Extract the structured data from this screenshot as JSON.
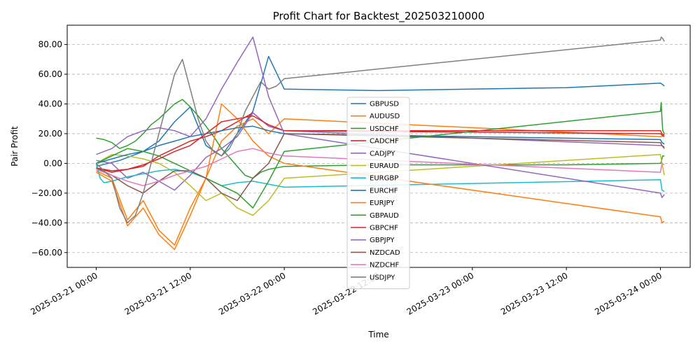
{
  "chart_data": {
    "type": "line",
    "title": "Profit Chart for Backtest_202503210000",
    "xlabel": "Time",
    "ylabel": "Pair Profit",
    "x_tick_labels": [
      "2025-03-21 00:00",
      "2025-03-21 12:00",
      "2025-03-22 00:00",
      "2025-03-22 12:00",
      "2025-03-23 00:00",
      "2025-03-23 12:00",
      "2025-03-24 00:00"
    ],
    "y_tick_labels": [
      "−60.00",
      "−40.00",
      "−20.00",
      "0.00",
      "20.00",
      "40.00",
      "60.00",
      "80.00"
    ],
    "y_ticks": [
      -60,
      -40,
      -20,
      0,
      20,
      40,
      60,
      80
    ],
    "xlim_hours": [
      -3.7,
      75.8
    ],
    "ylim": [
      -70,
      93
    ],
    "grid": "y-dashed",
    "legend_location": "center",
    "series": [
      {
        "name": "GBPUSD",
        "color": "#1f77b4",
        "x": [
          0,
          3,
          6,
          8,
          10,
          12,
          14,
          16,
          18,
          20,
          22,
          24,
          36,
          60,
          72,
          72.3,
          72.5
        ],
        "y": [
          -2,
          2,
          8,
          15,
          28,
          38,
          12,
          5,
          20,
          35,
          72,
          50,
          49,
          51,
          54,
          53,
          52
        ]
      },
      {
        "name": "AUDUSD",
        "color": "#ff7f0e",
        "x": [
          0,
          2,
          4,
          6,
          8,
          10,
          12,
          14,
          16,
          18,
          20,
          22,
          24,
          72,
          72.2,
          72.5
        ],
        "y": [
          -5,
          -10,
          -38,
          -25,
          -45,
          -55,
          -30,
          -10,
          15,
          25,
          30,
          20,
          30,
          18,
          18,
          20
        ]
      },
      {
        "name": "USDCHF",
        "color": "#2ca02c",
        "x": [
          0,
          1,
          2,
          3,
          4,
          5,
          6,
          7,
          8,
          9,
          10,
          11,
          12,
          13,
          14,
          15,
          16,
          17,
          18,
          19,
          20,
          21,
          22,
          23,
          24,
          36,
          60,
          72,
          72.1,
          72.2,
          72.3,
          72.5
        ],
        "y": [
          17,
          16,
          14,
          10,
          12,
          15,
          20,
          26,
          30,
          35,
          40,
          43,
          38,
          32,
          25,
          18,
          10,
          4,
          -2,
          -8,
          -10,
          -6,
          -4,
          -3,
          -2,
          -1,
          -1,
          0,
          1,
          3,
          5,
          5
        ]
      },
      {
        "name": "CADCHF",
        "color": "#d62728",
        "x": [
          0,
          2,
          4,
          6,
          8,
          10,
          12,
          14,
          16,
          18,
          20,
          22,
          24,
          72,
          72.2,
          72.5
        ],
        "y": [
          -3,
          -5,
          -4,
          -2,
          5,
          10,
          15,
          18,
          22,
          28,
          34,
          25,
          22,
          20,
          19,
          18
        ]
      },
      {
        "name": "CADJPY",
        "color": "#9467bd",
        "x": [
          0,
          2,
          4,
          6,
          8,
          10,
          12,
          14,
          16,
          18,
          20,
          22,
          24,
          72,
          72.2,
          72.5
        ],
        "y": [
          2,
          0,
          -10,
          -6,
          -12,
          -18,
          -8,
          4,
          10,
          18,
          34,
          25,
          22,
          12,
          12,
          11
        ]
      },
      {
        "name": "EURAUD",
        "color": "#bcbd22",
        "x": [
          0,
          2,
          4,
          6,
          8,
          10,
          12,
          14,
          16,
          18,
          20,
          22,
          24,
          72,
          72.2,
          72.5
        ],
        "y": [
          0,
          6,
          5,
          3,
          0,
          -6,
          -15,
          -25,
          -20,
          -30,
          -35,
          -25,
          -10,
          6,
          0,
          -8
        ]
      },
      {
        "name": "EURGBP",
        "color": "#17becf",
        "x": [
          0,
          0.5,
          1,
          2,
          4,
          6,
          8,
          10,
          12,
          14,
          16,
          18,
          20,
          22,
          24,
          72,
          72.2,
          72.5
        ],
        "y": [
          0,
          -10,
          -13,
          -12,
          -9,
          -7,
          -5,
          -4,
          -6,
          -10,
          -15,
          -13,
          -12,
          -14,
          -16,
          -11,
          -18,
          -19
        ]
      },
      {
        "name": "EURCHF",
        "color": "#1f77b4",
        "x": [
          0,
          2,
          4,
          6,
          8,
          10,
          12,
          14,
          16,
          18,
          20,
          22,
          24,
          72,
          72.2,
          72.5
        ],
        "y": [
          0,
          3,
          6,
          8,
          12,
          15,
          18,
          20,
          22,
          24,
          25,
          22,
          20,
          16,
          14,
          13
        ]
      },
      {
        "name": "EURJPY",
        "color": "#ff7f0e",
        "x": [
          0,
          2,
          4,
          6,
          8,
          10,
          12,
          14,
          16,
          18,
          20,
          22,
          24,
          72,
          72.2,
          72.5
        ],
        "y": [
          -6,
          -12,
          -42,
          -30,
          -48,
          -58,
          -35,
          -10,
          40,
          30,
          15,
          5,
          0,
          -36,
          -40,
          -39
        ]
      },
      {
        "name": "GBPAUD",
        "color": "#2ca02c",
        "x": [
          0,
          2,
          4,
          6,
          8,
          10,
          12,
          14,
          16,
          18,
          20,
          22,
          24,
          72,
          72.1,
          72.2,
          72.3,
          72.5
        ],
        "y": [
          0,
          5,
          10,
          8,
          5,
          0,
          -5,
          -10,
          -15,
          -20,
          -30,
          -12,
          8,
          35,
          41,
          30,
          22,
          20
        ]
      },
      {
        "name": "GBPCHF",
        "color": "#d62728",
        "x": [
          0,
          2,
          4,
          6,
          8,
          10,
          12,
          14,
          16,
          18,
          20,
          22,
          24,
          72,
          72.2,
          72.5
        ],
        "y": [
          -3,
          -6,
          -4,
          -1,
          3,
          8,
          12,
          20,
          28,
          30,
          32,
          26,
          22,
          22,
          20,
          19
        ]
      },
      {
        "name": "GBPJPY",
        "color": "#9467bd",
        "x": [
          0,
          2,
          4,
          6,
          8,
          10,
          12,
          14,
          16,
          18,
          20,
          22,
          24,
          72,
          72.2,
          72.5
        ],
        "y": [
          6,
          10,
          18,
          22,
          24,
          22,
          18,
          30,
          50,
          68,
          85,
          45,
          20,
          -20,
          -23,
          -21
        ]
      },
      {
        "name": "NZDCAD",
        "color": "#8c564b",
        "x": [
          0,
          2,
          4,
          6,
          8,
          10,
          12,
          14,
          16,
          18,
          20,
          22,
          24,
          72,
          72.2,
          72.5
        ],
        "y": [
          -3,
          -8,
          -15,
          -20,
          -12,
          -5,
          -5,
          -10,
          -20,
          -25,
          -10,
          0,
          20,
          14,
          12,
          10
        ]
      },
      {
        "name": "NZDCHF",
        "color": "#e377c2",
        "x": [
          0,
          2,
          4,
          6,
          8,
          10,
          12,
          14,
          16,
          18,
          20,
          22,
          24,
          72,
          72.2,
          72.5
        ],
        "y": [
          -4,
          -8,
          -12,
          -15,
          -12,
          -8,
          -5,
          -2,
          3,
          8,
          10,
          7,
          5,
          -6,
          0,
          -1
        ]
      },
      {
        "name": "USDJPY",
        "color": "#7f7f7f",
        "x": [
          0,
          2,
          3,
          4,
          5,
          6,
          7,
          8,
          9,
          10,
          11,
          12,
          13,
          14,
          15,
          16,
          17,
          18,
          19,
          20,
          21,
          22,
          23,
          24,
          72,
          72.1,
          72.3,
          72.5
        ],
        "y": [
          0,
          -10,
          -30,
          -40,
          -35,
          -20,
          0,
          20,
          40,
          60,
          70,
          50,
          30,
          15,
          8,
          5,
          10,
          20,
          35,
          45,
          55,
          50,
          52,
          57,
          83,
          85,
          84,
          82
        ]
      }
    ]
  }
}
